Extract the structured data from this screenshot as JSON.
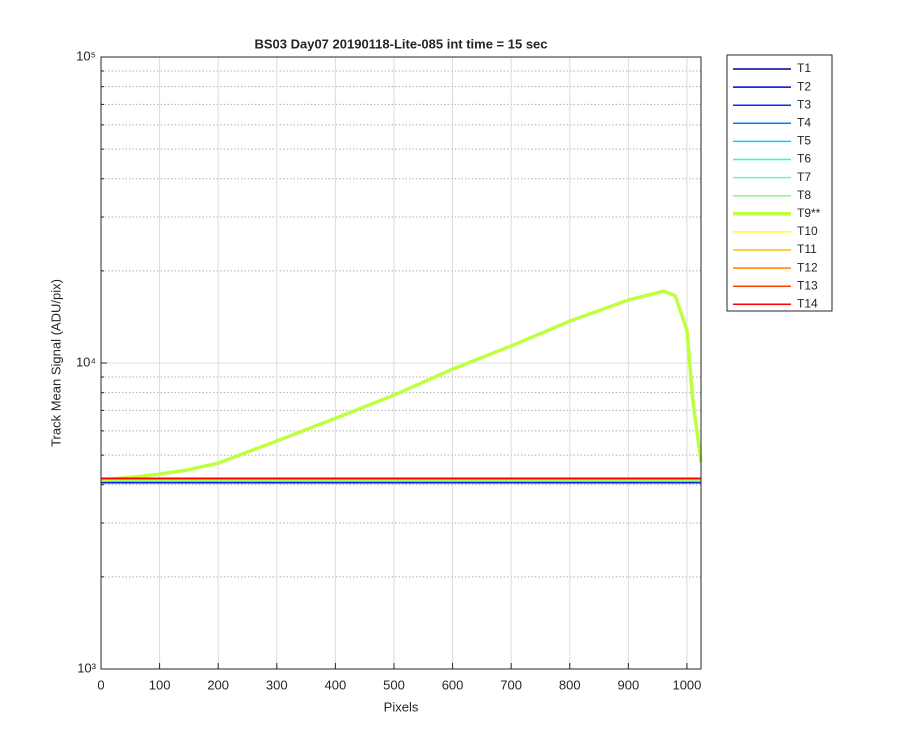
{
  "chart_data": {
    "type": "line",
    "title": "BS03 Day07 20190118-Lite-085 int time = 15 sec",
    "x_label": "Pixels",
    "y_label": "Track Mean Signal (ADU/pix)",
    "x": [
      0,
      50,
      100,
      150,
      200,
      300,
      400,
      500,
      600,
      700,
      800,
      900,
      960,
      980,
      1000,
      1010,
      1024
    ],
    "xlim": [
      0,
      1024
    ],
    "xticks": [
      0,
      100,
      200,
      300,
      400,
      500,
      600,
      700,
      800,
      900,
      1000
    ],
    "ylim": [
      1000,
      100000
    ],
    "y_scale": "log",
    "yticks": [
      {
        "value": 1000,
        "label": "10³"
      },
      {
        "value": 10000,
        "label": "10⁴"
      },
      {
        "value": 100000,
        "label": "10⁵"
      }
    ],
    "yminorticks": [
      2000,
      3000,
      4000,
      5000,
      6000,
      7000,
      8000,
      9000,
      20000,
      30000,
      40000,
      50000,
      60000,
      70000,
      80000,
      90000
    ],
    "grid": true,
    "legend": "outside-right",
    "series": [
      {
        "name": "T1",
        "color": "#00008f",
        "linewidth": 1.5,
        "values": [
          4060,
          4060,
          4060,
          4060,
          4060,
          4060,
          4060,
          4060,
          4060,
          4060,
          4060,
          4060,
          4060,
          4060,
          4060,
          4060,
          4060
        ]
      },
      {
        "name": "T2",
        "color": "#0000df",
        "linewidth": 1.5,
        "values": [
          4080,
          4080,
          4080,
          4080,
          4080,
          4080,
          4080,
          4080,
          4080,
          4080,
          4080,
          4080,
          4080,
          4080,
          4080,
          4080,
          4080
        ]
      },
      {
        "name": "T3",
        "color": "#0030ff",
        "linewidth": 1.5,
        "values": [
          4090,
          4090,
          4090,
          4090,
          4090,
          4090,
          4090,
          4090,
          4090,
          4090,
          4090,
          4090,
          4090,
          4090,
          4090,
          4090,
          4090
        ]
      },
      {
        "name": "T4",
        "color": "#0080ff",
        "linewidth": 1.5,
        "values": [
          4100,
          4100,
          4100,
          4100,
          4100,
          4100,
          4100,
          4100,
          4100,
          4100,
          4100,
          4100,
          4100,
          4100,
          4100,
          4100,
          4100
        ]
      },
      {
        "name": "T5",
        "color": "#00cfff",
        "linewidth": 1.5,
        "values": [
          4110,
          4110,
          4110,
          4110,
          4110,
          4110,
          4110,
          4110,
          4110,
          4110,
          4110,
          4110,
          4110,
          4110,
          4110,
          4110,
          4110
        ]
      },
      {
        "name": "T6",
        "color": "#20ffdf",
        "linewidth": 1.5,
        "values": [
          4120,
          4120,
          4120,
          4120,
          4120,
          4120,
          4120,
          4120,
          4120,
          4120,
          4120,
          4120,
          4120,
          4120,
          4120,
          4120,
          4120
        ]
      },
      {
        "name": "T7",
        "color": "#70efc0",
        "linewidth": 1.5,
        "values": [
          4130,
          4130,
          4130,
          4130,
          4130,
          4130,
          4130,
          4130,
          4130,
          4130,
          4130,
          4130,
          4130,
          4130,
          4130,
          4130,
          4130
        ]
      },
      {
        "name": "T8",
        "color": "#80ff80",
        "linewidth": 1.5,
        "values": [
          4140,
          4140,
          4140,
          4140,
          4140,
          4140,
          4140,
          4140,
          4140,
          4140,
          4140,
          4140,
          4140,
          4140,
          4140,
          4140,
          4140
        ]
      },
      {
        "name": "T9**",
        "color": "#bfff40",
        "linewidth": 3.5,
        "values": [
          4150,
          4230,
          4335,
          4480,
          4710,
          5560,
          6600,
          7850,
          9550,
          11370,
          13700,
          16060,
          17170,
          16600,
          12800,
          7570,
          4740
        ]
      },
      {
        "name": "T10",
        "color": "#ffff20",
        "linewidth": 1.5,
        "values": [
          4160,
          4160,
          4160,
          4160,
          4160,
          4160,
          4160,
          4160,
          4160,
          4160,
          4160,
          4160,
          4160,
          4160,
          4160,
          4160,
          4160
        ]
      },
      {
        "name": "T11",
        "color": "#ffbf00",
        "linewidth": 1.5,
        "values": [
          4170,
          4170,
          4170,
          4170,
          4170,
          4170,
          4170,
          4170,
          4170,
          4170,
          4170,
          4170,
          4170,
          4170,
          4170,
          4170,
          4170
        ]
      },
      {
        "name": "T12",
        "color": "#ff8000",
        "linewidth": 1.5,
        "values": [
          4180,
          4180,
          4180,
          4180,
          4180,
          4180,
          4180,
          4180,
          4180,
          4180,
          4180,
          4180,
          4180,
          4180,
          4180,
          4180,
          4180
        ]
      },
      {
        "name": "T13",
        "color": "#ff4000",
        "linewidth": 1.5,
        "values": [
          4190,
          4190,
          4190,
          4190,
          4190,
          4190,
          4190,
          4190,
          4190,
          4190,
          4190,
          4190,
          4190,
          4190,
          4190,
          4190,
          4190
        ]
      },
      {
        "name": "T14",
        "color": "#ff0000",
        "linewidth": 1.5,
        "values": [
          4200,
          4200,
          4200,
          4200,
          4200,
          4200,
          4200,
          4200,
          4200,
          4200,
          4200,
          4200,
          4200,
          4200,
          4200,
          4200,
          4200
        ]
      }
    ]
  }
}
